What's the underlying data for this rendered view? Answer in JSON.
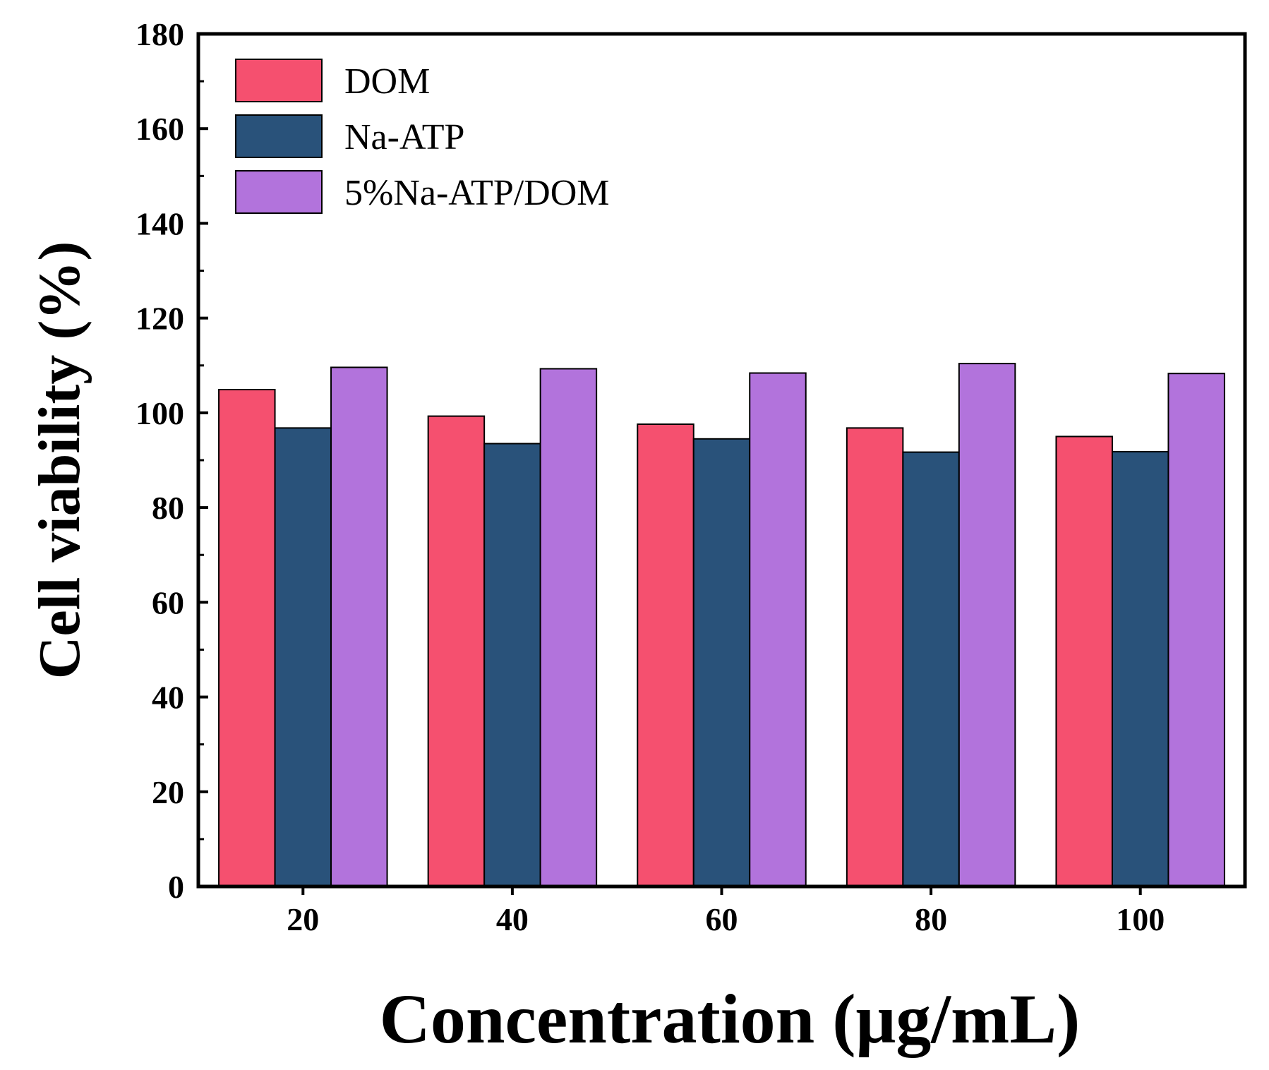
{
  "chart_data": {
    "type": "bar",
    "xlabel": "Concentration (μg/mL)",
    "ylabel": "Cell viability (%)",
    "categories": [
      "20",
      "40",
      "60",
      "80",
      "100"
    ],
    "ylim": [
      0,
      180
    ],
    "yticks": [
      0,
      20,
      40,
      60,
      80,
      100,
      120,
      140,
      160,
      180
    ],
    "yticks_labels": [
      "0",
      "20",
      "40",
      "60",
      "80",
      "100",
      "120",
      "140",
      "160",
      "180"
    ],
    "legend_position": "top-left",
    "grid": false,
    "series": [
      {
        "name": "DOM",
        "color": "#f5506f",
        "values": [
          104.9,
          99.3,
          97.6,
          96.8,
          95.0
        ]
      },
      {
        "name": "Na-ATP",
        "color": "#29527a",
        "values": [
          96.8,
          93.5,
          94.5,
          91.7,
          91.8
        ]
      },
      {
        "name": "5%Na-ATP/DOM",
        "color": "#b273dc",
        "values": [
          109.6,
          109.3,
          108.4,
          110.4,
          108.3
        ]
      }
    ]
  }
}
